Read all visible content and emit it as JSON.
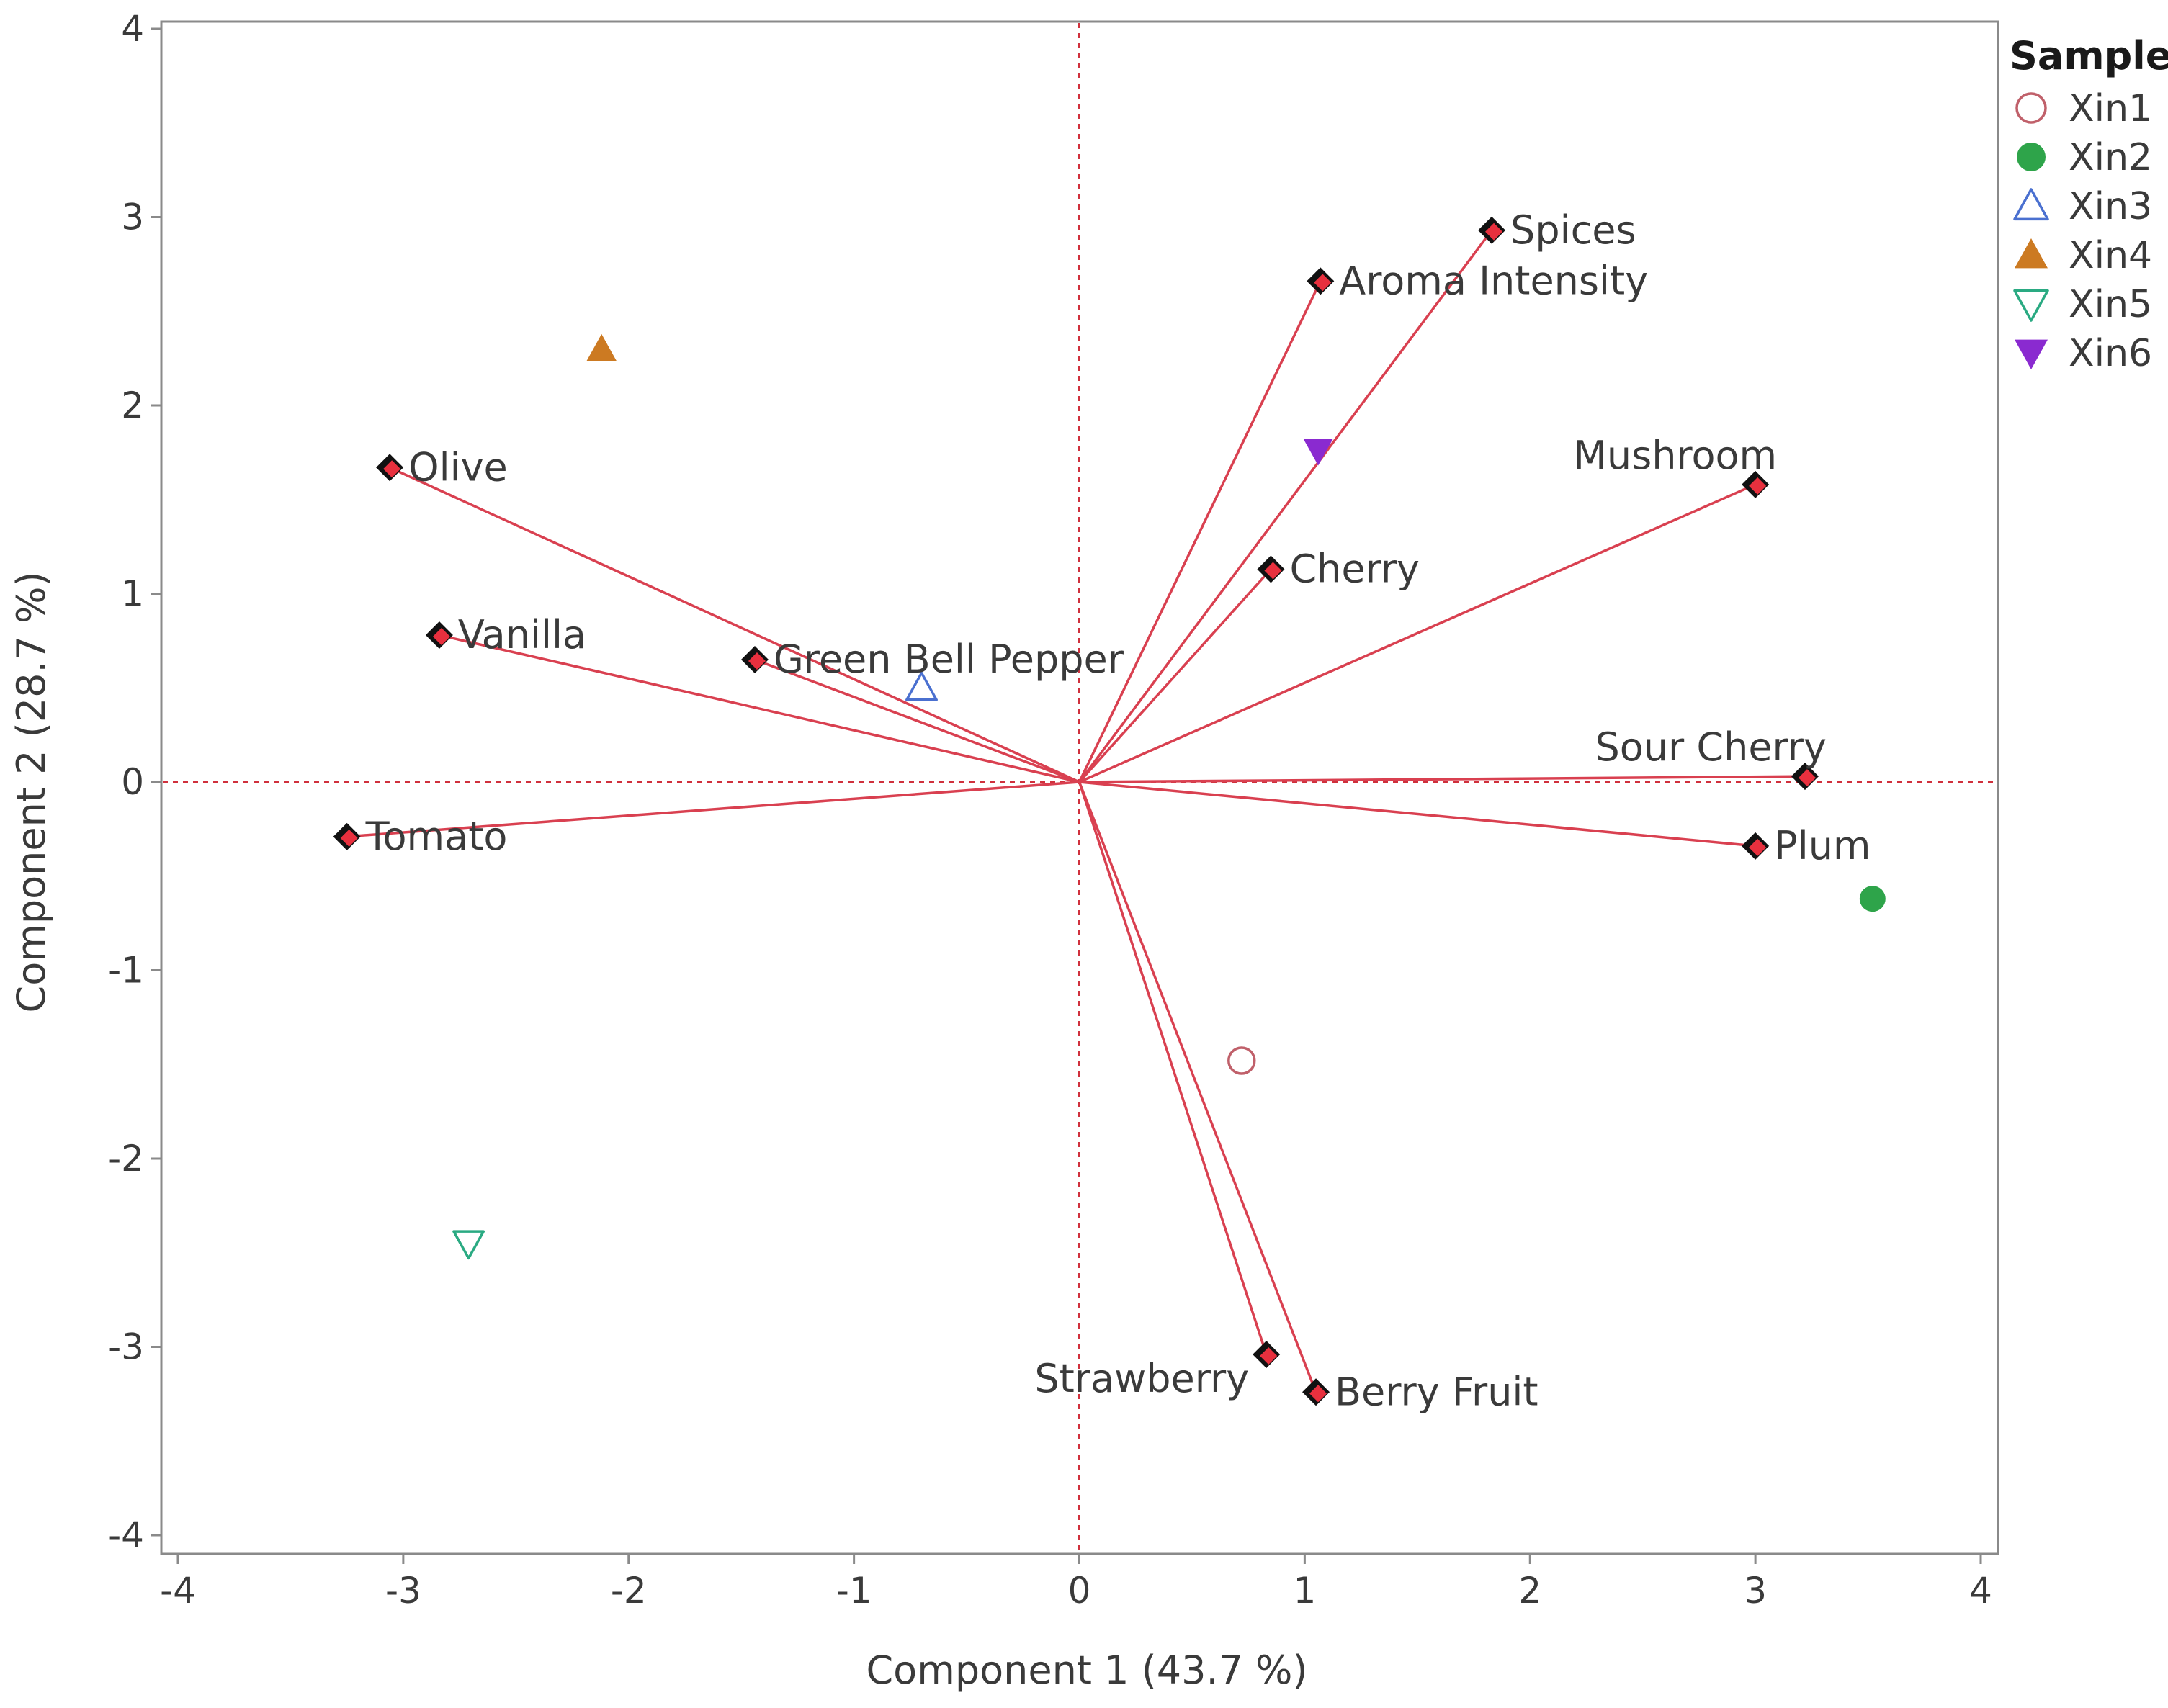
{
  "chart_data": {
    "type": "biplot",
    "xlabel": "Component 1  (43.7 %)",
    "ylabel": "Component 2  (28.7 %)",
    "xlim": [
      -4,
      4
    ],
    "ylim": [
      -4,
      4
    ],
    "xticks": [
      -4,
      -3,
      -2,
      -1,
      0,
      1,
      2,
      3,
      4
    ],
    "yticks": [
      -4,
      -3,
      -2,
      -1,
      0,
      1,
      2,
      3,
      4
    ],
    "legend_title": "Sample",
    "reference_lines": {
      "x": 0,
      "y": 0,
      "color": "#d0303c"
    },
    "vector_color": "#d94050",
    "loadings": [
      {
        "name": "Spices",
        "x": 1.83,
        "y": 2.93,
        "label_side": "right"
      },
      {
        "name": "Aroma Intensity",
        "x": 1.07,
        "y": 2.66,
        "label_side": "right"
      },
      {
        "name": "Olive",
        "x": -3.06,
        "y": 1.67,
        "label_side": "right"
      },
      {
        "name": "Mushroom",
        "x": 3.0,
        "y": 1.58,
        "label_side": "above-left"
      },
      {
        "name": "Cherry",
        "x": 0.85,
        "y": 1.13,
        "label_side": "right"
      },
      {
        "name": "Vanilla",
        "x": -2.84,
        "y": 0.78,
        "label_side": "right"
      },
      {
        "name": "Green Bell Pepper",
        "x": -1.44,
        "y": 0.65,
        "label_side": "right"
      },
      {
        "name": "Sour Cherry",
        "x": 3.22,
        "y": 0.03,
        "label_side": "above-left"
      },
      {
        "name": "Tomato",
        "x": -3.25,
        "y": -0.29,
        "label_side": "right"
      },
      {
        "name": "Plum",
        "x": 3.0,
        "y": -0.34,
        "label_side": "right"
      },
      {
        "name": "Strawberry",
        "x": 0.83,
        "y": -3.04,
        "label_side": "below-left"
      },
      {
        "name": "Berry Fruit",
        "x": 1.05,
        "y": -3.24,
        "label_side": "right"
      }
    ],
    "samples": [
      {
        "name": "Xin1",
        "x": 0.72,
        "y": -1.48,
        "marker": "circle-open",
        "color": "#c0606a"
      },
      {
        "name": "Xin2",
        "x": 3.52,
        "y": -0.62,
        "marker": "circle-filled",
        "color": "#2ea44a"
      },
      {
        "name": "Xin3",
        "x": -0.7,
        "y": 0.5,
        "marker": "triangle-up-open",
        "color": "#4a70d0"
      },
      {
        "name": "Xin4",
        "x": -2.12,
        "y": 2.3,
        "marker": "triangle-up-filled",
        "color": "#cc7a22"
      },
      {
        "name": "Xin5",
        "x": -2.71,
        "y": -2.45,
        "marker": "triangle-down-open",
        "color": "#2aaa82"
      },
      {
        "name": "Xin6",
        "x": 1.06,
        "y": 1.76,
        "marker": "triangle-down-filled",
        "color": "#8a2ad0"
      }
    ]
  }
}
